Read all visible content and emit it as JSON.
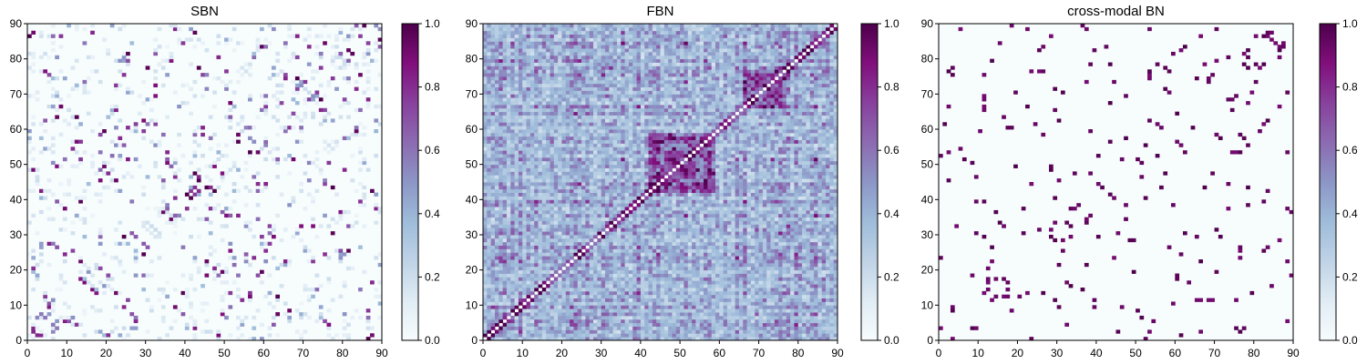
{
  "colormap": {
    "name": "BuPu",
    "stops": [
      "#f7fcfd",
      "#e0ecf4",
      "#bfd3e6",
      "#9ebcda",
      "#8c96c6",
      "#8c6bb1",
      "#88419d",
      "#810f7c",
      "#4d004b"
    ]
  },
  "chart_data": [
    {
      "type": "heatmap",
      "title": "SBN",
      "xlabel": "",
      "ylabel": "",
      "xlim": [
        0,
        90
      ],
      "ylim": [
        0,
        90
      ],
      "xticks": [
        "0",
        "10",
        "20",
        "30",
        "40",
        "50",
        "60",
        "70",
        "80",
        "90"
      ],
      "yticks": [
        "0",
        "10",
        "20",
        "30",
        "40",
        "50",
        "60",
        "70",
        "80",
        "90"
      ],
      "colorbar": {
        "range": [
          0,
          1
        ],
        "ticks": [
          "0.0",
          "0.2",
          "0.4",
          "0.6",
          "0.8",
          "1.0"
        ]
      },
      "matrix_size": 90,
      "grid": false,
      "values_description_free": true,
      "seed": 11,
      "density": 0.045,
      "structure": "sparse"
    },
    {
      "type": "heatmap",
      "title": "FBN",
      "xlabel": "",
      "ylabel": "",
      "xlim": [
        0,
        90
      ],
      "ylim": [
        0,
        90
      ],
      "xticks": [
        "0",
        "10",
        "20",
        "30",
        "40",
        "50",
        "60",
        "70",
        "80",
        "90"
      ],
      "yticks": [
        "0",
        "10",
        "20",
        "30",
        "40",
        "50",
        "60",
        "70",
        "80",
        "90"
      ],
      "colorbar": {
        "range": [
          0,
          1
        ],
        "ticks": [
          "0.0",
          "0.2",
          "0.4",
          "0.6",
          "0.8",
          "1.0"
        ]
      },
      "matrix_size": 90,
      "grid": false,
      "seed": 23,
      "density": 1.0,
      "structure": "dense"
    },
    {
      "type": "heatmap",
      "title": "cross-modal BN",
      "xlabel": "",
      "ylabel": "",
      "xlim": [
        0,
        90
      ],
      "ylim": [
        0,
        90
      ],
      "xticks": [
        "0",
        "10",
        "20",
        "30",
        "40",
        "50",
        "60",
        "70",
        "80",
        "90"
      ],
      "yticks": [
        "0",
        "10",
        "20",
        "30",
        "40",
        "50",
        "60",
        "70",
        "80",
        "90"
      ],
      "colorbar": {
        "range": [
          0,
          1
        ],
        "ticks": [
          "0.0",
          "0.2",
          "0.4",
          "0.6",
          "0.8",
          "1.0"
        ]
      },
      "matrix_size": 90,
      "grid": false,
      "seed": 37,
      "density": 0.03,
      "structure": "binary"
    }
  ]
}
